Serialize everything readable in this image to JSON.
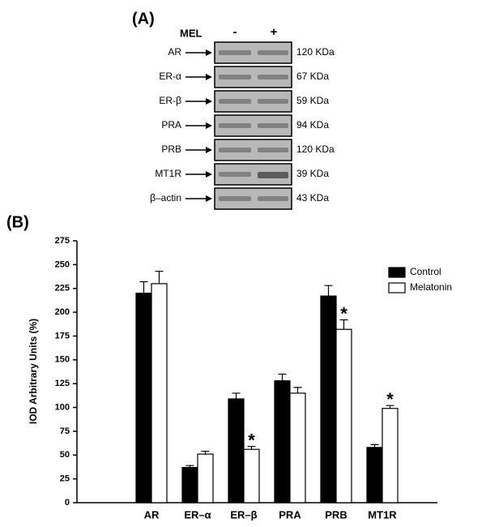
{
  "panel_a": {
    "label": "(A)",
    "treatment_label": "MEL",
    "lanes": [
      "-",
      "+"
    ],
    "rows": [
      {
        "protein": "AR",
        "size": "120 KDa"
      },
      {
        "protein": "ER-α",
        "size": "67 KDa"
      },
      {
        "protein": "ER-β",
        "size": "59 KDa"
      },
      {
        "protein": "PRA",
        "size": "94 KDa"
      },
      {
        "protein": "PRB",
        "size": "120 KDa"
      },
      {
        "protein": "MT1R",
        "size": "39 KDa"
      },
      {
        "protein": "β–actin",
        "size": "43 KDa"
      }
    ]
  },
  "chart_data": {
    "type": "bar",
    "panel_label": "(B)",
    "ylabel": "IOD Arbitrary Units (%)",
    "categories": [
      "AR",
      "ER–α",
      "ER–β",
      "PRA",
      "PRB",
      "MT1R"
    ],
    "series": [
      {
        "name": "Control",
        "color": "#000000",
        "values": [
          220,
          37,
          109,
          128,
          217,
          58
        ],
        "errors": [
          12,
          2,
          6,
          7,
          11,
          3
        ]
      },
      {
        "name": "Melatonin",
        "color": "#ffffff",
        "values": [
          230,
          51,
          56,
          115,
          182,
          99
        ],
        "errors": [
          13,
          3,
          3,
          6,
          10,
          3
        ]
      }
    ],
    "annotations": [
      {
        "text": "*",
        "series": "Melatonin",
        "category": "ER–β"
      },
      {
        "text": "*",
        "series": "Melatonin",
        "category": "PRB"
      },
      {
        "text": "*",
        "series": "Melatonin",
        "category": "MT1R"
      }
    ],
    "ylim": [
      0,
      275
    ],
    "yticks": [
      0,
      25,
      50,
      75,
      100,
      125,
      150,
      175,
      200,
      225,
      250,
      275
    ],
    "legend": "upper right"
  }
}
